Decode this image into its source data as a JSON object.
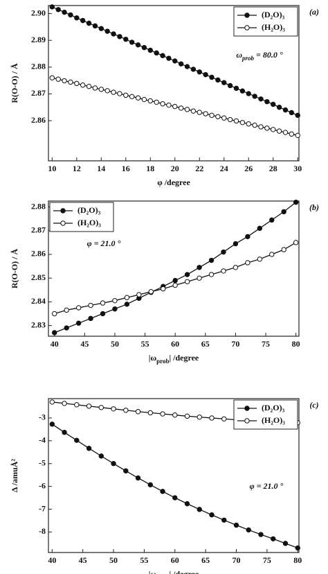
{
  "chart_data": [
    {
      "type": "line",
      "panel_label": "(a)",
      "x_label": [
        "φ /degree"
      ],
      "y_label": "R(O-O) / Å",
      "annotation": [
        "ω",
        "prob",
        " = 80.0 °"
      ],
      "x": [
        10,
        10.5,
        11,
        11.5,
        12,
        12.5,
        13,
        13.5,
        14,
        14.5,
        15,
        15.5,
        16,
        16.5,
        17,
        17.5,
        18,
        18.5,
        19,
        19.5,
        20,
        20.5,
        21,
        21.5,
        22,
        22.5,
        23,
        23.5,
        24,
        24.5,
        25,
        25.5,
        26,
        26.5,
        27,
        27.5,
        28,
        28.5,
        29,
        29.5,
        30
      ],
      "series": [
        {
          "name": "(D₂O)₃",
          "color": "#111111",
          "marker": "filled",
          "values": [
            2.9025,
            2.9015,
            2.9005,
            2.8995,
            2.8984,
            2.8974,
            2.8964,
            2.8954,
            2.8944,
            2.8934,
            2.8924,
            2.8914,
            2.8904,
            2.8893,
            2.8883,
            2.8873,
            2.8863,
            2.8853,
            2.8843,
            2.8833,
            2.8823,
            2.8812,
            2.8802,
            2.8792,
            2.8782,
            2.8772,
            2.8762,
            2.8752,
            2.8742,
            2.8731,
            2.8721,
            2.8711,
            2.8701,
            2.8691,
            2.8681,
            2.8671,
            2.8661,
            2.865,
            2.864,
            2.863,
            2.862
          ]
        },
        {
          "name": "(H₂O)₃",
          "color": "#111111",
          "marker": "open",
          "values": [
            2.876,
            2.8755,
            2.8749,
            2.8744,
            2.8739,
            2.8733,
            2.8728,
            2.8722,
            2.8717,
            2.8712,
            2.8706,
            2.8701,
            2.8695,
            2.869,
            2.8685,
            2.8679,
            2.8674,
            2.8669,
            2.8663,
            2.8658,
            2.8653,
            2.8647,
            2.8642,
            2.8636,
            2.8631,
            2.8626,
            2.862,
            2.8615,
            2.861,
            2.8604,
            2.8599,
            2.8593,
            2.8588,
            2.8583,
            2.8577,
            2.8572,
            2.8567,
            2.8561,
            2.8556,
            2.855,
            2.8545
          ]
        }
      ],
      "xlim": [
        9.7,
        30.1
      ],
      "ylim": [
        2.845,
        2.903
      ],
      "xticks": [
        10,
        12,
        14,
        16,
        18,
        20,
        22,
        24,
        26,
        28,
        30
      ],
      "yticks": [
        2.86,
        2.87,
        2.88,
        2.89,
        {
          "value": 2.9,
          "label": "2.90"
        }
      ],
      "legend": "upper right"
    },
    {
      "type": "line",
      "panel_label": "(b)",
      "x_label": [
        "|ω",
        "prob",
        "| /degree"
      ],
      "y_label": "R(O-O) / Å",
      "annotation": [
        "φ = 21.0 °"
      ],
      "x": [
        40,
        42,
        44,
        46,
        48,
        50,
        52,
        54,
        56,
        58,
        60,
        62,
        64,
        66,
        68,
        70,
        72,
        74,
        76,
        78,
        80
      ],
      "series": [
        {
          "name": "(D₂O)₃",
          "color": "#111111",
          "marker": "filled",
          "values": [
            2.827,
            2.829,
            2.831,
            2.833,
            2.835,
            2.837,
            2.839,
            2.8415,
            2.844,
            2.8465,
            2.849,
            2.8515,
            2.8545,
            2.8575,
            2.861,
            2.8645,
            2.8675,
            2.871,
            2.8745,
            2.878,
            2.882
          ]
        },
        {
          "name": "(H₂O)₃",
          "color": "#111111",
          "marker": "open",
          "values": [
            2.835,
            2.8365,
            2.8375,
            2.8385,
            2.8395,
            2.8405,
            2.8418,
            2.843,
            2.8443,
            2.8455,
            2.847,
            2.8485,
            2.85,
            2.8515,
            2.853,
            2.8545,
            2.8565,
            2.858,
            2.86,
            2.862,
            2.865
          ]
        }
      ],
      "xlim": [
        39,
        80.5
      ],
      "ylim": [
        2.8255,
        2.8825
      ],
      "xticks": [
        40,
        45,
        50,
        55,
        60,
        65,
        70,
        75,
        80
      ],
      "yticks": [
        2.83,
        2.84,
        2.85,
        2.86,
        2.87,
        2.88
      ],
      "legend": "upper left"
    },
    {
      "type": "line",
      "panel_label": "(c)",
      "x_label": [
        "|ω",
        "prob",
        "| /degree"
      ],
      "y_label": "Δ /amuÅ²",
      "annotation": [
        "φ = 21.0 °"
      ],
      "x": [
        40,
        42,
        44,
        46,
        48,
        50,
        52,
        54,
        56,
        58,
        60,
        62,
        64,
        66,
        68,
        70,
        72,
        74,
        76,
        78,
        80
      ],
      "series": [
        {
          "name": "(D₂O)₃",
          "color": "#111111",
          "marker": "filled",
          "values": [
            -3.27,
            -3.63,
            -3.98,
            -4.33,
            -4.67,
            -5.0,
            -5.32,
            -5.63,
            -5.93,
            -6.22,
            -6.5,
            -6.76,
            -7.01,
            -7.25,
            -7.48,
            -7.7,
            -7.91,
            -8.11,
            -8.3,
            -8.5,
            -8.7
          ]
        },
        {
          "name": "(H₂O)₃",
          "color": "#111111",
          "marker": "open",
          "values": [
            -2.3,
            -2.36,
            -2.42,
            -2.48,
            -2.54,
            -2.6,
            -2.66,
            -2.72,
            -2.77,
            -2.82,
            -2.87,
            -2.92,
            -2.96,
            -3.0,
            -3.04,
            -3.08,
            -3.11,
            -3.14,
            -3.17,
            -3.19,
            -3.21
          ]
        }
      ],
      "xlim": [
        39.4,
        80.2
      ],
      "ylim": [
        -8.9,
        -2.15
      ],
      "xticks": [
        40,
        45,
        50,
        55,
        60,
        65,
        70,
        75,
        80
      ],
      "yticks": [
        -8,
        -7,
        -6,
        -5,
        -4,
        -3
      ],
      "legend": "upper right"
    }
  ]
}
